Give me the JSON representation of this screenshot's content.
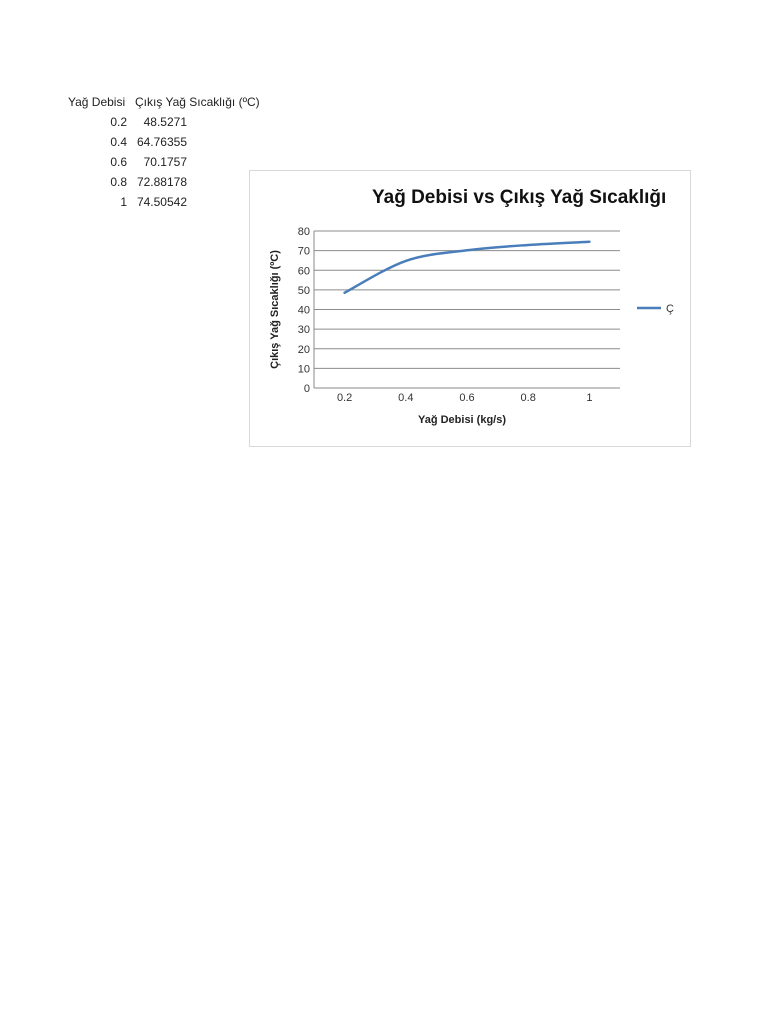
{
  "table": {
    "headers": [
      "Yağ Debisi",
      "Çıkış Yağ Sıcaklığı (ºC)"
    ],
    "rows": [
      [
        "0.2",
        "48.5271"
      ],
      [
        "0.4",
        "64.76355"
      ],
      [
        "0.6",
        "70.1757"
      ],
      [
        "0.8",
        "72.88178"
      ],
      [
        "1",
        "74.50542"
      ]
    ]
  },
  "chart_data": {
    "type": "line",
    "title": "Yağ Debisi vs Çıkış Yağ Sıcaklığı",
    "xlabel": "Yağ Debisi (kg/s)",
    "ylabel": "Çıkış Yağ Sıcaklığı (ºC)",
    "categories": [
      "0.2",
      "0.4",
      "0.6",
      "0.8",
      "1"
    ],
    "series": [
      {
        "name": "Ç",
        "values": [
          48.5271,
          64.76355,
          70.1757,
          72.88178,
          74.50542
        ],
        "color": "#4a7ebb"
      }
    ],
    "ylim": [
      0,
      80
    ],
    "yticks": [
      "0",
      "10",
      "20",
      "30",
      "40",
      "50",
      "60",
      "70",
      "80"
    ],
    "grid": true,
    "smooth": true,
    "legend_position": "right"
  }
}
